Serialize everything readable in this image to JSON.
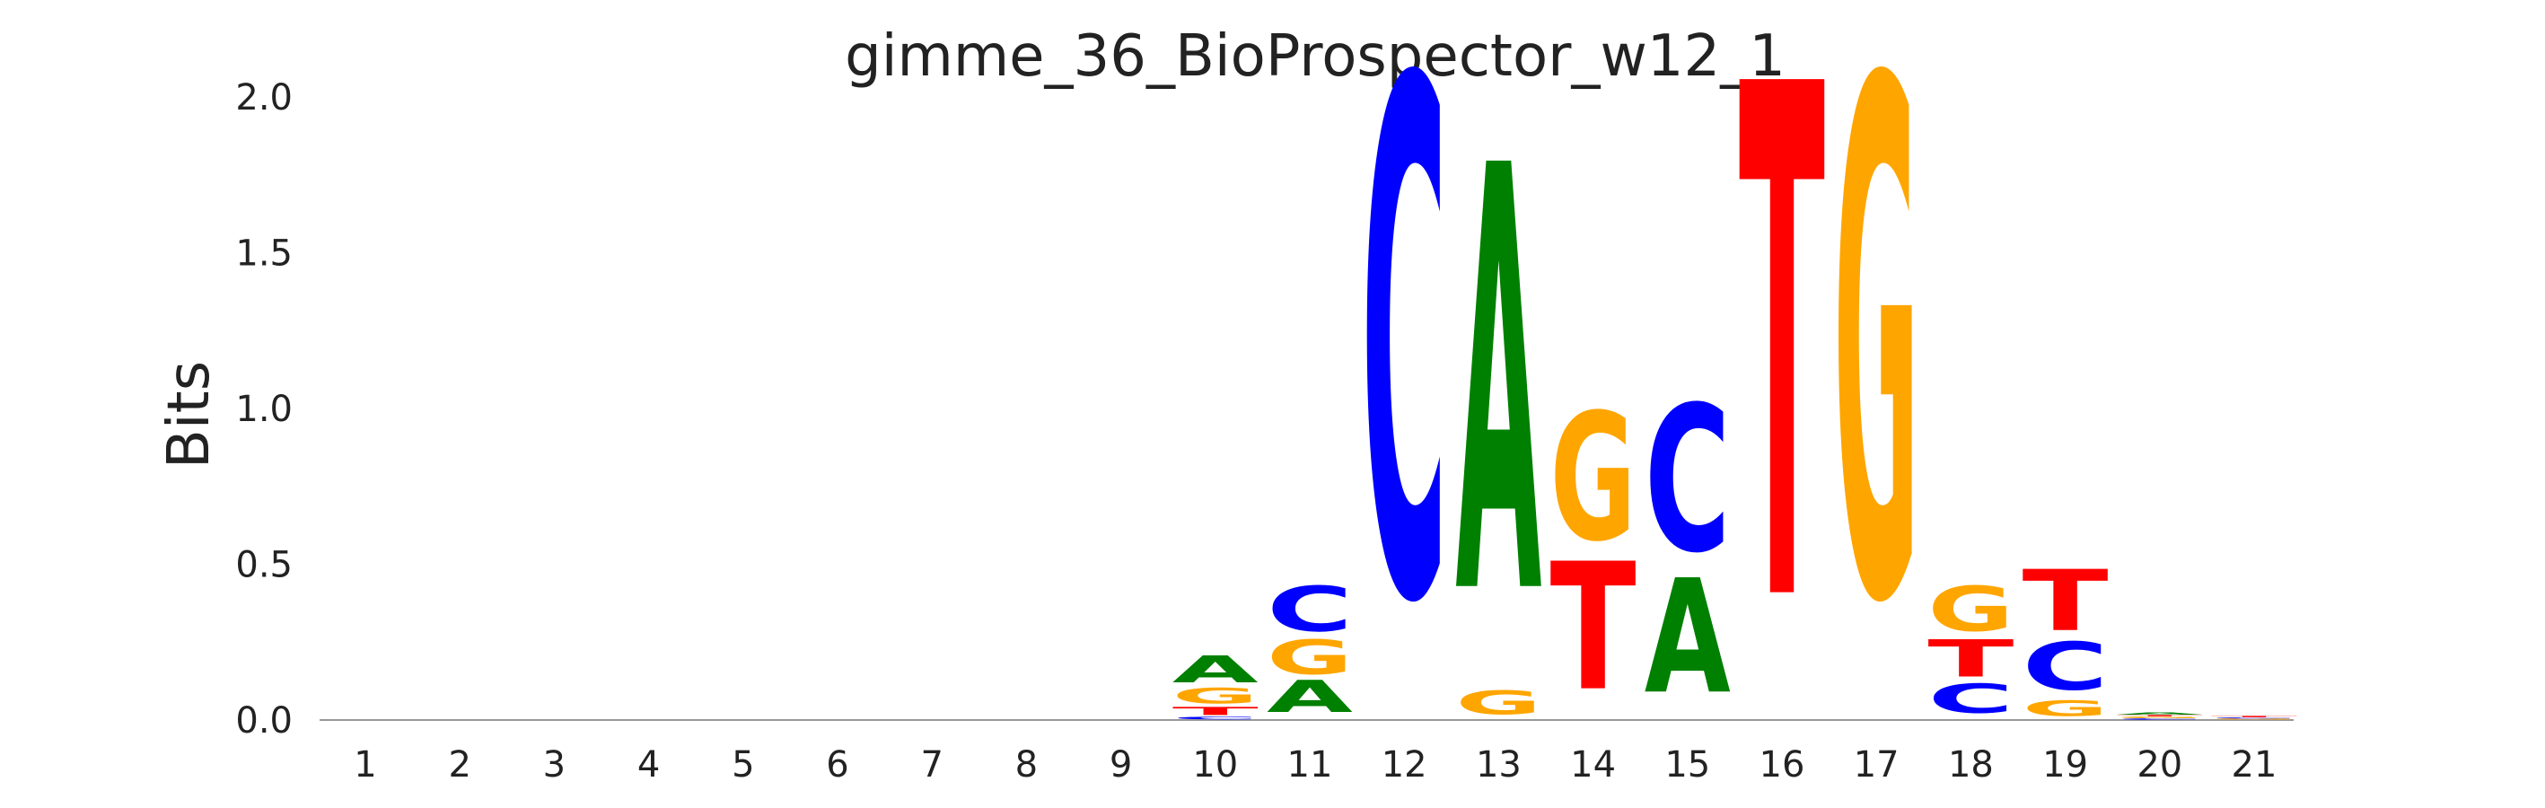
{
  "chart_data": {
    "type": "sequence-logo",
    "title": "gimme_36_BioProspector_w12_1",
    "ylabel": "Bits",
    "xlabel": "",
    "ylim": [
      0,
      2
    ],
    "yticks": [
      {
        "value": 0.0,
        "label": "0.0"
      },
      {
        "value": 0.5,
        "label": "0.5"
      },
      {
        "value": 1.0,
        "label": "1.0"
      },
      {
        "value": 1.5,
        "label": "1.5"
      },
      {
        "value": 2.0,
        "label": "2.0"
      }
    ],
    "positions": [
      "1",
      "2",
      "3",
      "4",
      "5",
      "6",
      "7",
      "8",
      "9",
      "10",
      "11",
      "12",
      "13",
      "14",
      "15",
      "16",
      "17",
      "18",
      "19",
      "20",
      "21"
    ],
    "grid": false,
    "legend": "none",
    "colors": {
      "A": "#008000",
      "C": "#0000ff",
      "G": "#ffa500",
      "T": "#ff0000"
    },
    "stacks": [
      [],
      [],
      [],
      [],
      [],
      [],
      [],
      [],
      [],
      [
        {
          "base": "C",
          "bits": 0.01
        },
        {
          "base": "T",
          "bits": 0.03
        },
        {
          "base": "G",
          "bits": 0.06
        },
        {
          "base": "A",
          "bits": 0.1
        }
      ],
      [
        {
          "base": "A",
          "bits": 0.12
        },
        {
          "base": "G",
          "bits": 0.13
        },
        {
          "base": "C",
          "bits": 0.17
        }
      ],
      [
        {
          "base": "C",
          "bits": 1.94
        }
      ],
      [
        {
          "base": "G",
          "bits": 0.09
        },
        {
          "base": "A",
          "bits": 1.6
        }
      ],
      [
        {
          "base": "T",
          "bits": 0.48
        },
        {
          "base": "G",
          "bits": 0.48
        }
      ],
      [
        {
          "base": "A",
          "bits": 0.43
        },
        {
          "base": "C",
          "bits": 0.55
        }
      ],
      [
        {
          "base": "T",
          "bits": 1.93
        }
      ],
      [
        {
          "base": "G",
          "bits": 1.94
        }
      ],
      [
        {
          "base": "C",
          "bits": 0.11
        },
        {
          "base": "T",
          "bits": 0.14
        },
        {
          "base": "G",
          "bits": 0.17
        }
      ],
      [
        {
          "base": "G",
          "bits": 0.06
        },
        {
          "base": "C",
          "bits": 0.18
        },
        {
          "base": "T",
          "bits": 0.23
        }
      ],
      [
        {
          "base": "C",
          "bits": 0.005
        },
        {
          "base": "G",
          "bits": 0.006
        },
        {
          "base": "T",
          "bits": 0.005
        },
        {
          "base": "A",
          "bits": 0.008
        }
      ],
      [
        {
          "base": "G",
          "bits": 0.004
        },
        {
          "base": "C",
          "bits": 0.004
        },
        {
          "base": "T",
          "bits": 0.005
        }
      ]
    ]
  }
}
